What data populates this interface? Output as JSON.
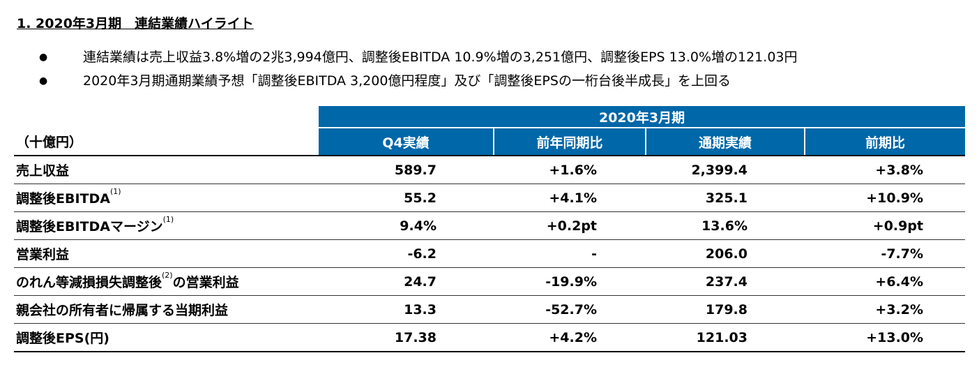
{
  "section_title": "1. 2020年3月期　連結業績ハイライト",
  "bullets": [
    "連結業績は売上収益3.8%増の2兆3,994億円、調整後EBITDA 10.9%増の3,251億円、調整後EPS 13.0%増の121.03円",
    "2020年3月期通期業績予想「調整後EBITDA 3,200億円程度」及び「調整後EPSの一桁台後半成長」を上回る"
  ],
  "bullet_symbol": "●",
  "table": {
    "unit": "（十億円）",
    "period": "2020年3月期",
    "columns": [
      "Q4実績",
      "前年同期比",
      "通期実績",
      "前期比"
    ],
    "rows": [
      {
        "label": "売上収益",
        "note": "",
        "label_suffix": "",
        "values": [
          "589.7",
          "+1.6%",
          "2,399.4",
          "+3.8%"
        ]
      },
      {
        "label": "調整後EBITDA",
        "note": "(1)",
        "label_suffix": "",
        "values": [
          "55.2",
          "+4.1%",
          "325.1",
          "+10.9%"
        ]
      },
      {
        "label": "調整後EBITDAマージン",
        "note": "(1)",
        "label_suffix": "",
        "values": [
          "9.4%",
          "+0.2pt",
          "13.6%",
          "+0.9pt"
        ]
      },
      {
        "label": "営業利益",
        "note": "",
        "label_suffix": "",
        "values": [
          "-6.2",
          "-",
          "206.0",
          "-7.7%"
        ]
      },
      {
        "label": "のれん等減損損失調整後",
        "note": "(2)",
        "label_suffix": "の営業利益",
        "values": [
          "24.7",
          "-19.9%",
          "237.4",
          "+6.4%"
        ]
      },
      {
        "label": "親会社の所有者に帰属する当期利益",
        "note": "",
        "label_suffix": "",
        "values": [
          "13.3",
          "-52.7%",
          "179.8",
          "+3.2%"
        ]
      },
      {
        "label": "調整後EPS(円)",
        "note": "",
        "label_suffix": "",
        "values": [
          "17.38",
          "+4.2%",
          "121.03",
          "+13.0%"
        ]
      }
    ]
  },
  "colors": {
    "header_blue": "#0067a8",
    "header_text": "#ffffff"
  }
}
